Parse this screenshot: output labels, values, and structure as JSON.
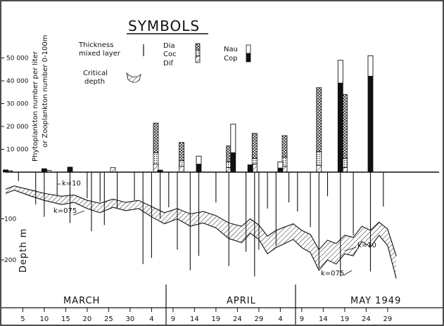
{
  "chart_data": {
    "type": "bar",
    "title": "SYMBOLS",
    "ylabel_phyto": "Phytoplankton number per liter",
    "ylabel_zoo": "or Zooplankton number 0-100m",
    "ylabel_depth": "Depth m",
    "yticks_upper": [
      "10 000",
      "20 000",
      "30 000",
      "40 000",
      "50 000"
    ],
    "yticks_lower": [
      "100",
      "200"
    ],
    "ylim_upper": [
      0,
      55000
    ],
    "ylim_lower": [
      0,
      230
    ],
    "months": [
      "MARCH",
      "APRIL",
      "MAY 1949"
    ],
    "xticks": [
      "5",
      "10",
      "15",
      "20",
      "25",
      "30",
      "4",
      "9",
      "14",
      "19",
      "24",
      "29",
      "4",
      "9",
      "14",
      "19",
      "24",
      "29"
    ],
    "legend": {
      "thickness": "Thickness mixed layer",
      "critical": "Critical depth",
      "dia": "Dia",
      "coc": "Coc",
      "dif": "Dif",
      "nau": "Nau",
      "cop": "Cop"
    },
    "curve_labels": {
      "k10_left": "k=10",
      "k075_left": "k=075",
      "k10_right": "k=10",
      "k075_right": "k=075"
    },
    "phyto_bars": [
      {
        "day": 2,
        "dia": 600,
        "coc": 0,
        "dif": 0
      },
      {
        "day": 11,
        "dia": 0,
        "coc": 0,
        "dif": 800
      },
      {
        "day": 26,
        "dia": 0,
        "coc": 0,
        "dif": 2000
      },
      {
        "day": 36,
        "dia": 13000,
        "coc": 5000,
        "dif": 3500
      },
      {
        "day": 42,
        "dia": 8000,
        "coc": 2500,
        "dif": 2500
      },
      {
        "day": 53,
        "dia": 7000,
        "coc": 2500,
        "dif": 2000
      },
      {
        "day": 59,
        "dia": 11000,
        "coc": 2500,
        "dif": 3500
      },
      {
        "day": 66,
        "dia": 9500,
        "coc": 4000,
        "dif": 2500
      },
      {
        "day": 74,
        "dia": 28000,
        "coc": 6000,
        "dif": 3000
      },
      {
        "day": 80,
        "dia": 28000,
        "coc": 4000,
        "dif": 2000
      }
    ],
    "zoo_bars": [
      {
        "day": 1,
        "nau": 0,
        "cop": 1000
      },
      {
        "day": 10,
        "nau": 0,
        "cop": 1500
      },
      {
        "day": 16,
        "nau": 0,
        "cop": 2200
      },
      {
        "day": 37,
        "nau": 0,
        "cop": 900
      },
      {
        "day": 46,
        "nau": 3500,
        "cop": 3500
      },
      {
        "day": 54,
        "nau": 12500,
        "cop": 8500
      },
      {
        "day": 58,
        "nau": 0,
        "cop": 3200
      },
      {
        "day": 65,
        "nau": 2700,
        "cop": 1800
      },
      {
        "day": 79,
        "nau": 10000,
        "cop": 39000
      },
      {
        "day": 86,
        "nau": 9000,
        "cop": 42000
      }
    ],
    "mixed_layer_depths": [
      {
        "day": 4,
        "depth": 8
      },
      {
        "day": 8,
        "depth": 65
      },
      {
        "day": 10,
        "depth": 95
      },
      {
        "day": 13,
        "depth": 42
      },
      {
        "day": 16,
        "depth": 110
      },
      {
        "day": 20,
        "depth": 50
      },
      {
        "day": 21,
        "depth": 130
      },
      {
        "day": 23,
        "depth": 58
      },
      {
        "day": 24,
        "depth": 115
      },
      {
        "day": 27,
        "depth": 75
      },
      {
        "day": 31,
        "depth": 55
      },
      {
        "day": 33,
        "depth": 210
      },
      {
        "day": 35,
        "depth": 195
      },
      {
        "day": 37,
        "depth": 100
      },
      {
        "day": 39,
        "depth": 72
      },
      {
        "day": 41,
        "depth": 175
      },
      {
        "day": 44,
        "depth": 225
      },
      {
        "day": 46,
        "depth": 190
      },
      {
        "day": 50,
        "depth": 60
      },
      {
        "day": 53,
        "depth": 215
      },
      {
        "day": 57,
        "depth": 180
      },
      {
        "day": 59,
        "depth": 240
      },
      {
        "day": 60,
        "depth": 175
      },
      {
        "day": 62,
        "depth": 75
      },
      {
        "day": 64,
        "depth": 165
      },
      {
        "day": 67,
        "depth": 60
      },
      {
        "day": 69,
        "depth": 82
      },
      {
        "day": 72,
        "depth": 120
      },
      {
        "day": 74,
        "depth": 220
      },
      {
        "day": 76,
        "depth": 45
      },
      {
        "day": 79,
        "depth": 240
      },
      {
        "day": 82,
        "depth": 140
      },
      {
        "day": 86,
        "depth": 228
      },
      {
        "day": 89,
        "depth": 70
      }
    ],
    "critical_depth_k10": [
      {
        "day": 1,
        "depth": 28
      },
      {
        "day": 3,
        "depth": 20
      },
      {
        "day": 7,
        "depth": 30
      },
      {
        "day": 10,
        "depth": 38
      },
      {
        "day": 14,
        "depth": 45
      },
      {
        "day": 17,
        "depth": 42
      },
      {
        "day": 20,
        "depth": 55
      },
      {
        "day": 23,
        "depth": 62
      },
      {
        "day": 26,
        "depth": 52
      },
      {
        "day": 29,
        "depth": 60
      },
      {
        "day": 32,
        "depth": 55
      },
      {
        "day": 35,
        "depth": 70
      },
      {
        "day": 38,
        "depth": 85
      },
      {
        "day": 41,
        "depth": 75
      },
      {
        "day": 44,
        "depth": 88
      },
      {
        "day": 47,
        "depth": 82
      },
      {
        "day": 50,
        "depth": 92
      },
      {
        "day": 53,
        "depth": 110
      },
      {
        "day": 56,
        "depth": 118
      },
      {
        "day": 58,
        "depth": 100
      },
      {
        "day": 60,
        "depth": 115
      },
      {
        "day": 62,
        "depth": 142
      },
      {
        "day": 64,
        "depth": 128
      },
      {
        "day": 66,
        "depth": 120
      },
      {
        "day": 68,
        "depth": 112
      },
      {
        "day": 70,
        "depth": 128
      },
      {
        "day": 72,
        "depth": 138
      },
      {
        "day": 74,
        "depth": 175
      },
      {
        "day": 76,
        "depth": 152
      },
      {
        "day": 78,
        "depth": 160
      },
      {
        "day": 80,
        "depth": 140
      },
      {
        "day": 82,
        "depth": 145
      },
      {
        "day": 84,
        "depth": 118
      },
      {
        "day": 86,
        "depth": 128
      },
      {
        "day": 88,
        "depth": 108
      },
      {
        "day": 90,
        "depth": 125
      },
      {
        "day": 92,
        "depth": 190
      }
    ],
    "critical_depth_k075": [
      {
        "day": 1,
        "depth": 38
      },
      {
        "day": 3,
        "depth": 30
      },
      {
        "day": 7,
        "depth": 45
      },
      {
        "day": 10,
        "depth": 55
      },
      {
        "day": 14,
        "depth": 65
      },
      {
        "day": 17,
        "depth": 60
      },
      {
        "day": 20,
        "depth": 75
      },
      {
        "day": 23,
        "depth": 85
      },
      {
        "day": 26,
        "depth": 72
      },
      {
        "day": 29,
        "depth": 80
      },
      {
        "day": 32,
        "depth": 75
      },
      {
        "day": 35,
        "depth": 95
      },
      {
        "day": 38,
        "depth": 112
      },
      {
        "day": 41,
        "depth": 100
      },
      {
        "day": 44,
        "depth": 118
      },
      {
        "day": 47,
        "depth": 110
      },
      {
        "day": 50,
        "depth": 122
      },
      {
        "day": 53,
        "depth": 148
      },
      {
        "day": 56,
        "depth": 158
      },
      {
        "day": 58,
        "depth": 135
      },
      {
        "day": 60,
        "depth": 150
      },
      {
        "day": 62,
        "depth": 185
      },
      {
        "day": 64,
        "depth": 170
      },
      {
        "day": 66,
        "depth": 160
      },
      {
        "day": 68,
        "depth": 150
      },
      {
        "day": 70,
        "depth": 170
      },
      {
        "day": 72,
        "depth": 182
      },
      {
        "day": 74,
        "depth": 225
      },
      {
        "day": 76,
        "depth": 200
      },
      {
        "day": 78,
        "depth": 210
      },
      {
        "day": 80,
        "depth": 185
      },
      {
        "day": 82,
        "depth": 190
      },
      {
        "day": 84,
        "depth": 155
      },
      {
        "day": 86,
        "depth": 168
      },
      {
        "day": 88,
        "depth": 140
      },
      {
        "day": 90,
        "depth": 165
      },
      {
        "day": 92,
        "depth": 245
      }
    ]
  }
}
